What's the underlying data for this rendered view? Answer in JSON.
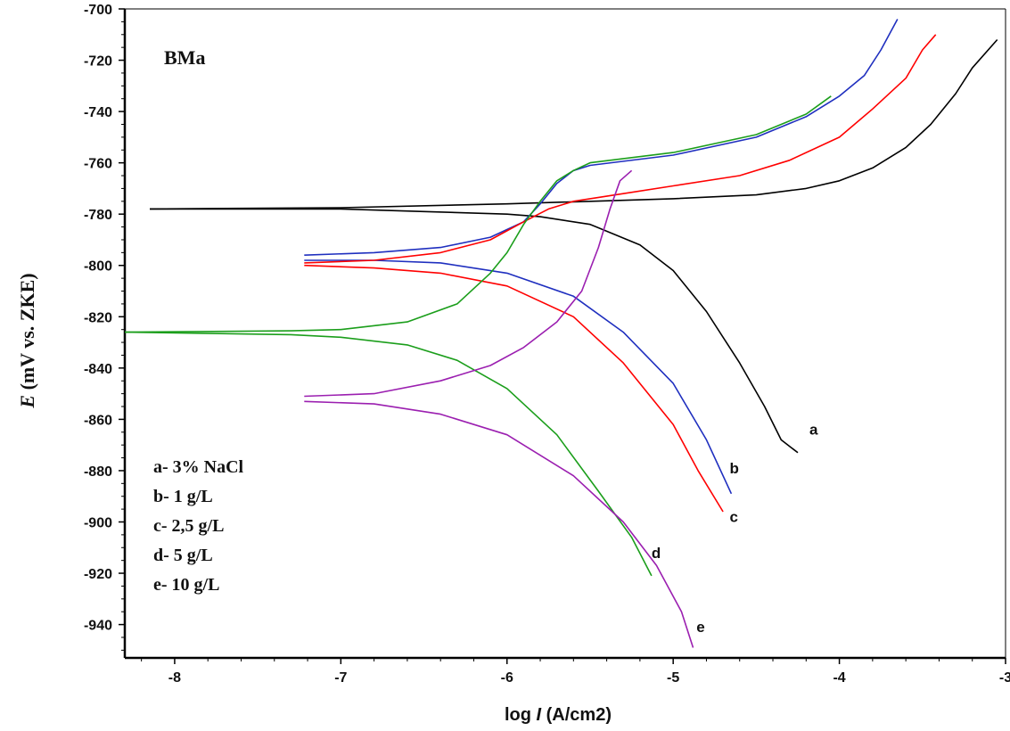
{
  "chart_data": {
    "type": "line",
    "title": "",
    "panel_label": "BMa",
    "xlabel_parts": [
      "log ",
      "I",
      " (A/cm2)"
    ],
    "ylabel_parts": [
      "E",
      " (mV vs. ZKE)"
    ],
    "xlim": [
      -8.3,
      -3.0
    ],
    "ylim": [
      -953,
      -700
    ],
    "x_ticks": [
      -8,
      -7,
      -6,
      -5,
      -4,
      -3
    ],
    "y_ticks": [
      -700,
      -720,
      -740,
      -760,
      -780,
      -800,
      -820,
      -840,
      -860,
      -880,
      -900,
      -920,
      -940
    ],
    "grid": false,
    "legend_position": "bottom-left",
    "legend": [
      "a- 3% NaCl",
      "b- 1 g/L",
      "c- 2,5 g/L",
      "d- 5 g/L",
      "e- 10 g/L"
    ],
    "series": [
      {
        "name": "a",
        "color": "#000000",
        "anodic": [
          [
            -8.15,
            -778
          ],
          [
            -7.0,
            -777.5
          ],
          [
            -6.0,
            -776
          ],
          [
            -5.0,
            -774
          ],
          [
            -4.5,
            -772.5
          ],
          [
            -4.2,
            -770
          ],
          [
            -4.0,
            -767
          ],
          [
            -3.8,
            -762
          ],
          [
            -3.6,
            -754
          ],
          [
            -3.45,
            -745
          ],
          [
            -3.3,
            -733
          ],
          [
            -3.2,
            -723
          ],
          [
            -3.05,
            -712
          ]
        ],
        "cathodic": [
          [
            -8.15,
            -778
          ],
          [
            -7.0,
            -778
          ],
          [
            -6.5,
            -779
          ],
          [
            -6.0,
            -780
          ],
          [
            -5.8,
            -781
          ],
          [
            -5.5,
            -784
          ],
          [
            -5.2,
            -792
          ],
          [
            -5.0,
            -802
          ],
          [
            -4.8,
            -818
          ],
          [
            -4.6,
            -838
          ],
          [
            -4.45,
            -855
          ],
          [
            -4.35,
            -868
          ],
          [
            -4.25,
            -873
          ]
        ]
      },
      {
        "name": "b",
        "color": "#1f2fbf",
        "anodic": [
          [
            -7.22,
            -796
          ],
          [
            -6.8,
            -795
          ],
          [
            -6.4,
            -793
          ],
          [
            -6.1,
            -789
          ],
          [
            -5.9,
            -783
          ],
          [
            -5.8,
            -776
          ],
          [
            -5.7,
            -768
          ],
          [
            -5.6,
            -763
          ],
          [
            -5.5,
            -761
          ],
          [
            -5.0,
            -757
          ],
          [
            -4.5,
            -750
          ],
          [
            -4.2,
            -742
          ],
          [
            -4.0,
            -734
          ],
          [
            -3.85,
            -726
          ],
          [
            -3.75,
            -716
          ],
          [
            -3.65,
            -704
          ]
        ],
        "cathodic": [
          [
            -7.22,
            -798
          ],
          [
            -6.8,
            -798
          ],
          [
            -6.4,
            -799
          ],
          [
            -6.0,
            -803
          ],
          [
            -5.6,
            -812
          ],
          [
            -5.3,
            -826
          ],
          [
            -5.0,
            -846
          ],
          [
            -4.8,
            -868
          ],
          [
            -4.65,
            -889
          ]
        ]
      },
      {
        "name": "c",
        "color": "#ff0000",
        "anodic": [
          [
            -7.22,
            -799
          ],
          [
            -6.8,
            -798
          ],
          [
            -6.4,
            -795
          ],
          [
            -6.1,
            -790
          ],
          [
            -5.9,
            -783
          ],
          [
            -5.75,
            -778
          ],
          [
            -5.6,
            -775
          ],
          [
            -5.3,
            -772
          ],
          [
            -5.0,
            -769
          ],
          [
            -4.6,
            -765
          ],
          [
            -4.3,
            -759
          ],
          [
            -4.0,
            -750
          ],
          [
            -3.8,
            -739
          ],
          [
            -3.6,
            -727
          ],
          [
            -3.5,
            -716
          ],
          [
            -3.42,
            -710
          ]
        ],
        "cathodic": [
          [
            -7.22,
            -800
          ],
          [
            -6.8,
            -801
          ],
          [
            -6.4,
            -803
          ],
          [
            -6.0,
            -808
          ],
          [
            -5.6,
            -820
          ],
          [
            -5.3,
            -838
          ],
          [
            -5.0,
            -862
          ],
          [
            -4.85,
            -880
          ],
          [
            -4.7,
            -896
          ]
        ]
      },
      {
        "name": "d",
        "color": "#1b9e1b",
        "anodic": [
          [
            -8.3,
            -826
          ],
          [
            -7.3,
            -825.5
          ],
          [
            -7.0,
            -825
          ],
          [
            -6.6,
            -822
          ],
          [
            -6.3,
            -815
          ],
          [
            -6.1,
            -803
          ],
          [
            -6.0,
            -795
          ],
          [
            -5.9,
            -784
          ],
          [
            -5.8,
            -775
          ],
          [
            -5.7,
            -767
          ],
          [
            -5.6,
            -763
          ],
          [
            -5.5,
            -760
          ],
          [
            -5.0,
            -756
          ],
          [
            -4.5,
            -749
          ],
          [
            -4.2,
            -741
          ],
          [
            -4.05,
            -734
          ]
        ],
        "cathodic": [
          [
            -8.3,
            -826
          ],
          [
            -7.3,
            -827
          ],
          [
            -7.0,
            -828
          ],
          [
            -6.6,
            -831
          ],
          [
            -6.3,
            -837
          ],
          [
            -6.0,
            -848
          ],
          [
            -5.7,
            -866
          ],
          [
            -5.45,
            -888
          ],
          [
            -5.25,
            -906
          ],
          [
            -5.13,
            -921
          ]
        ]
      },
      {
        "name": "e",
        "color": "#9b1fb0",
        "anodic": [
          [
            -7.22,
            -851
          ],
          [
            -6.8,
            -850
          ],
          [
            -6.4,
            -845
          ],
          [
            -6.1,
            -839
          ],
          [
            -5.9,
            -832
          ],
          [
            -5.7,
            -822
          ],
          [
            -5.55,
            -810
          ],
          [
            -5.45,
            -793
          ],
          [
            -5.38,
            -778
          ],
          [
            -5.32,
            -767
          ],
          [
            -5.25,
            -763
          ]
        ],
        "cathodic": [
          [
            -7.22,
            -853
          ],
          [
            -6.8,
            -854
          ],
          [
            -6.4,
            -858
          ],
          [
            -6.0,
            -866
          ],
          [
            -5.6,
            -882
          ],
          [
            -5.3,
            -900
          ],
          [
            -5.1,
            -917
          ],
          [
            -4.95,
            -935
          ],
          [
            -4.88,
            -949
          ]
        ]
      }
    ],
    "curve_labels": [
      {
        "text": "a",
        "x": -4.18,
        "y": -866
      },
      {
        "text": "b",
        "x": -4.66,
        "y": -881
      },
      {
        "text": "c",
        "x": -4.66,
        "y": -900
      },
      {
        "text": "d",
        "x": -5.13,
        "y": -914
      },
      {
        "text": "e",
        "x": -4.86,
        "y": -943
      }
    ]
  }
}
